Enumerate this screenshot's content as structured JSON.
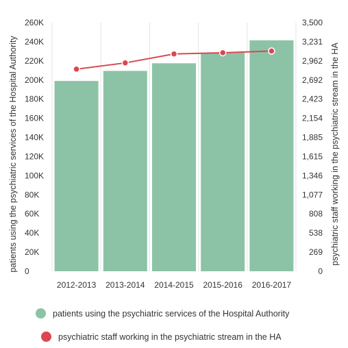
{
  "chart_data": {
    "type": "bar",
    "categories": [
      "2012-2013",
      "2013-2014",
      "2014-2015",
      "2015-2016",
      "2016-2017"
    ],
    "series": [
      {
        "name": "patients using the psychiatric services of the Hospital Authority",
        "kind": "bar",
        "axis": "left",
        "values": [
          199000,
          209500,
          217500,
          228500,
          241500
        ]
      },
      {
        "name": "psychiatric staff working in the psychiatric stream in the HA",
        "kind": "line",
        "axis": "right",
        "values": [
          2845,
          2933,
          3059,
          3076,
          3100
        ]
      }
    ],
    "ylabel_left": "patients using the psychiatric services of the Hospital Authority",
    "ylabel_right": "psychiatric staff working in the psychiatric stream in the HA",
    "ylim_left": [
      0,
      260000
    ],
    "ylim_right": [
      0,
      3500
    ],
    "yticks_left": [
      "0",
      "20K",
      "40K",
      "60K",
      "80K",
      "100K",
      "120K",
      "140K",
      "160K",
      "180K",
      "200K",
      "220K",
      "240K",
      "260K"
    ],
    "yticks_right": [
      "0",
      "269",
      "538",
      "808",
      "1,077",
      "1,346",
      "1,615",
      "1,885",
      "2,154",
      "2,423",
      "2,692",
      "2,962",
      "3,231",
      "3,500"
    ],
    "grid": "vertical",
    "legend": "bottom",
    "colors": {
      "bar": "#8cc3a7",
      "line": "#d9474f",
      "grid": "#e3e3e3"
    }
  }
}
